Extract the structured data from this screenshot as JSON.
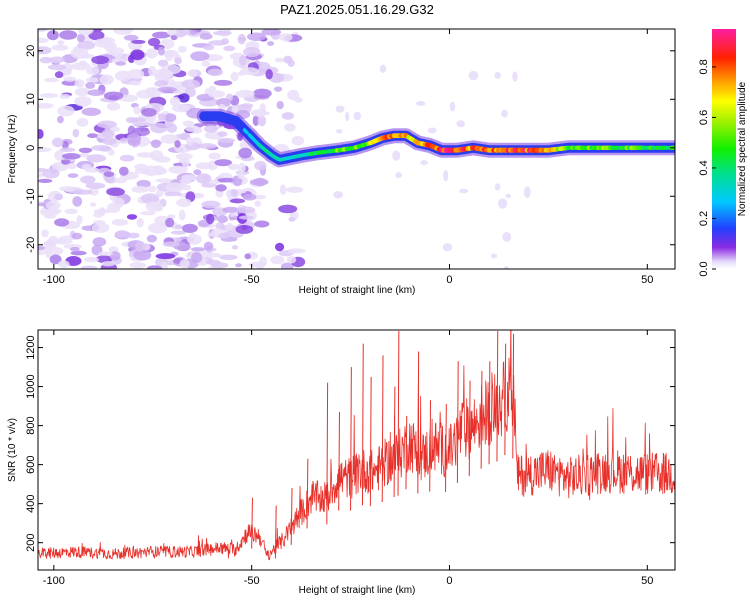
{
  "figure_title": "PAZ1.2025.051.16.29.G32",
  "chart_data": [
    {
      "type": "heatmap",
      "xlabel": "Height of straight line (km)",
      "ylabel": "Frequency (Hz)",
      "colorbar_label": "Normalized spectral amplitude",
      "xlim": [
        -104,
        57
      ],
      "ylim": [
        -25,
        24.5
      ],
      "xticks": [
        -100,
        -50,
        0,
        50
      ],
      "yticks": [
        -20,
        -10,
        0,
        10,
        20
      ],
      "colorbar_range": [
        0,
        0.95
      ],
      "colorbar_ticks": [
        0.0,
        0.2,
        0.4,
        0.6,
        0.8
      ],
      "colormap": "rainbow",
      "ridge_frequency": {
        "x": [
          -62,
          -58,
          -54,
          -51,
          -48,
          -45,
          -43,
          -40,
          -37,
          -33,
          -28,
          -24,
          -20,
          -17,
          -14,
          -11,
          -8,
          -5,
          -2,
          2,
          6,
          10,
          15,
          20,
          25,
          30,
          40,
          50,
          57
        ],
        "y": [
          6.5,
          6.5,
          5.5,
          3.0,
          0.5,
          -1.5,
          -2.5,
          -2.0,
          -1.5,
          -1.0,
          -0.5,
          0.0,
          1.0,
          2.0,
          2.5,
          2.5,
          1.0,
          0.5,
          -0.5,
          -0.5,
          0.0,
          -0.5,
          -0.5,
          -0.5,
          -0.5,
          0.0,
          0.0,
          0.0,
          0.0
        ]
      },
      "ridge_amplitude": {
        "x": [
          -62,
          -55,
          -50,
          -47,
          -40,
          -30,
          -20,
          -15,
          -10,
          -5,
          0,
          5,
          10,
          15,
          20,
          25,
          30,
          40,
          50,
          57
        ],
        "y": [
          0.2,
          0.25,
          0.3,
          0.45,
          0.35,
          0.55,
          0.6,
          0.85,
          0.7,
          0.8,
          0.95,
          0.8,
          0.85,
          0.9,
          0.85,
          0.7,
          0.6,
          0.55,
          0.55,
          0.5
        ]
      },
      "noise_region_x": [
        -104,
        -38
      ]
    },
    {
      "type": "line",
      "xlabel": "Height of straight line (km)",
      "ylabel": "SNR (10 * v/v)",
      "xlim": [
        -104,
        57
      ],
      "ylim": [
        60,
        1290
      ],
      "xticks": [
        -100,
        -50,
        0,
        50
      ],
      "yticks": [
        200,
        400,
        600,
        800,
        1000,
        1200
      ],
      "line_color": "#e8302a",
      "grid": false,
      "series": [
        {
          "x": [
            -104,
            -95,
            -85,
            -75,
            -65,
            -58,
            -54,
            -51,
            -48,
            -46,
            -44,
            -42,
            -40,
            -38,
            -35,
            -31,
            -28,
            -25,
            -22,
            -19,
            -16,
            -13,
            -10,
            -7,
            -4,
            0,
            3,
            6,
            9,
            12,
            15,
            16.5,
            17,
            20,
            25,
            30,
            40,
            50,
            57
          ],
          "y": [
            140,
            150,
            140,
            150,
            150,
            170,
            160,
            250,
            230,
            130,
            170,
            210,
            270,
            330,
            420,
            420,
            520,
            520,
            560,
            550,
            600,
            630,
            700,
            620,
            680,
            650,
            760,
            780,
            850,
            880,
            950,
            880,
            530,
            540,
            560,
            520,
            560,
            540,
            540
          ]
        }
      ],
      "spikes": {
        "x": [
          -50,
          -44,
          -40,
          -36,
          -31,
          -28,
          -25,
          -22,
          -20,
          -17,
          -14,
          -13,
          -11,
          -8,
          -5,
          -1,
          2,
          5,
          8,
          10,
          12,
          14,
          16
        ],
        "y": [
          430,
          390,
          480,
          630,
          1020,
          870,
          1100,
          1220,
          1050,
          1160,
          1000,
          1285,
          850,
          1180,
          930,
          910,
          1130,
          1030,
          1080,
          1130,
          1285,
          1220,
          1270
        ]
      }
    }
  ]
}
